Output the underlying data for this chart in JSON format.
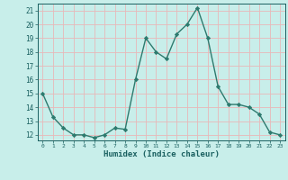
{
  "x": [
    0,
    1,
    2,
    3,
    4,
    5,
    6,
    7,
    8,
    9,
    10,
    11,
    12,
    13,
    14,
    15,
    16,
    17,
    18,
    19,
    20,
    21,
    22,
    23
  ],
  "y": [
    15,
    13.3,
    12.5,
    12,
    12,
    11.8,
    12,
    12.5,
    12.4,
    16,
    19,
    18,
    17.5,
    19.3,
    20,
    21.2,
    19,
    15.5,
    14.2,
    14.2,
    14,
    13.5,
    12.2,
    12
  ],
  "line_color": "#2d7a6e",
  "marker": "D",
  "marker_size": 2.2,
  "bg_color": "#c8eeea",
  "grid_color": "#e8b8b8",
  "xlabel": "Humidex (Indice chaleur)",
  "xlabel_color": "#1a6060",
  "tick_color": "#1a6060",
  "ylim": [
    11.6,
    21.5
  ],
  "yticks": [
    12,
    13,
    14,
    15,
    16,
    17,
    18,
    19,
    20,
    21
  ],
  "xlim": [
    -0.5,
    23.5
  ],
  "xticks": [
    0,
    1,
    2,
    3,
    4,
    5,
    6,
    7,
    8,
    9,
    10,
    11,
    12,
    13,
    14,
    15,
    16,
    17,
    18,
    19,
    20,
    21,
    22,
    23
  ]
}
